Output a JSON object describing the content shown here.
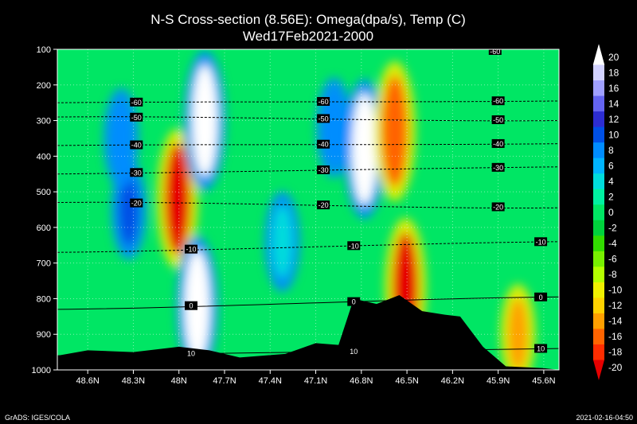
{
  "chart_data": {
    "type": "heatmap",
    "title": "N-S Cross-section (8.56E): Omega(dpa/s), Temp (C)",
    "subtitle": "Wed17Feb2021-2000",
    "xlabel": "",
    "ylabel": "",
    "x_ticks": [
      "48.6N",
      "48.3N",
      "48N",
      "47.7N",
      "47.4N",
      "47.1N",
      "46.8N",
      "46.5N",
      "46.2N",
      "45.9N",
      "45.6N"
    ],
    "x_tick_values": [
      48.6,
      48.3,
      48.0,
      47.7,
      47.4,
      47.1,
      46.8,
      46.5,
      46.2,
      45.9,
      45.6
    ],
    "xlim": [
      48.8,
      45.5
    ],
    "y_ticks": [
      "100",
      "200",
      "300",
      "400",
      "500",
      "600",
      "700",
      "800",
      "900",
      "1000"
    ],
    "y_tick_values": [
      100,
      200,
      300,
      400,
      500,
      600,
      700,
      800,
      900,
      1000
    ],
    "ylim": [
      100,
      1000
    ],
    "y_axis": "pressure (reversed)",
    "grid": true,
    "colorbar": {
      "labels": [
        "20",
        "18",
        "16",
        "14",
        "12",
        "10",
        "8",
        "6",
        "4",
        "2",
        "0",
        "-2",
        "-4",
        "-6",
        "-8",
        "-10",
        "-12",
        "-14",
        "-16",
        "-18",
        "-20"
      ],
      "colors": [
        "#ffffff",
        "#d2d2ff",
        "#a0a0ff",
        "#6464f0",
        "#2d2dd2",
        "#0050e6",
        "#008cff",
        "#00b4ff",
        "#00dcdc",
        "#00f0a0",
        "#00e664",
        "#00d23c",
        "#32dc00",
        "#78f000",
        "#b4ff00",
        "#f0f000",
        "#ffd200",
        "#ffa000",
        "#ff6400",
        "#ff2d00",
        "#e60000"
      ]
    },
    "temperature_contours": [
      {
        "label": "-60",
        "p_left": 250,
        "p_right": 245
      },
      {
        "label": "-50",
        "p_left": 290,
        "p_right": 300
      },
      {
        "label": "-40",
        "p_left": 370,
        "p_right": 365
      },
      {
        "label": "-30",
        "p_left": 450,
        "p_right": 430
      },
      {
        "label": "-20",
        "p_left": 530,
        "p_right": 545
      },
      {
        "label": "-10",
        "p_left": 670,
        "p_right": 640
      },
      {
        "label": "0",
        "p_left": 830,
        "p_right": 795
      },
      {
        "label": "10",
        "p_left": 960,
        "p_right": 940
      }
    ],
    "top_label": "-60",
    "omega_features": [
      {
        "lat": 48.01,
        "p": 520,
        "value": -20
      },
      {
        "lat": 47.83,
        "p": 300,
        "value": 20
      },
      {
        "lat": 47.88,
        "p": 820,
        "value": 20
      },
      {
        "lat": 46.78,
        "p": 380,
        "value": 20
      },
      {
        "lat": 46.58,
        "p": 330,
        "value": -16
      },
      {
        "lat": 46.51,
        "p": 770,
        "value": -20
      },
      {
        "lat": 48.33,
        "p": 550,
        "value": 10
      },
      {
        "lat": 48.38,
        "p": 350,
        "value": 8
      },
      {
        "lat": 46.98,
        "p": 320,
        "value": 8
      },
      {
        "lat": 45.77,
        "p": 900,
        "value": -14
      },
      {
        "lat": 47.32,
        "p": 640,
        "value": 4
      }
    ],
    "terrain_pressure": [
      {
        "lat": 48.8,
        "p": 960
      },
      {
        "lat": 48.6,
        "p": 945
      },
      {
        "lat": 48.3,
        "p": 950
      },
      {
        "lat": 48.0,
        "p": 935
      },
      {
        "lat": 47.8,
        "p": 945
      },
      {
        "lat": 47.6,
        "p": 965
      },
      {
        "lat": 47.3,
        "p": 955
      },
      {
        "lat": 47.1,
        "p": 925
      },
      {
        "lat": 46.95,
        "p": 930
      },
      {
        "lat": 46.85,
        "p": 800
      },
      {
        "lat": 46.7,
        "p": 815
      },
      {
        "lat": 46.55,
        "p": 790
      },
      {
        "lat": 46.4,
        "p": 835
      },
      {
        "lat": 46.25,
        "p": 845
      },
      {
        "lat": 46.15,
        "p": 850
      },
      {
        "lat": 46.0,
        "p": 935
      },
      {
        "lat": 45.85,
        "p": 990
      },
      {
        "lat": 45.6,
        "p": 995
      },
      {
        "lat": 45.5,
        "p": 1000
      }
    ]
  },
  "footer": {
    "left": "GrADS: IGES/COLA",
    "right": "2021-02-16-04:50"
  }
}
